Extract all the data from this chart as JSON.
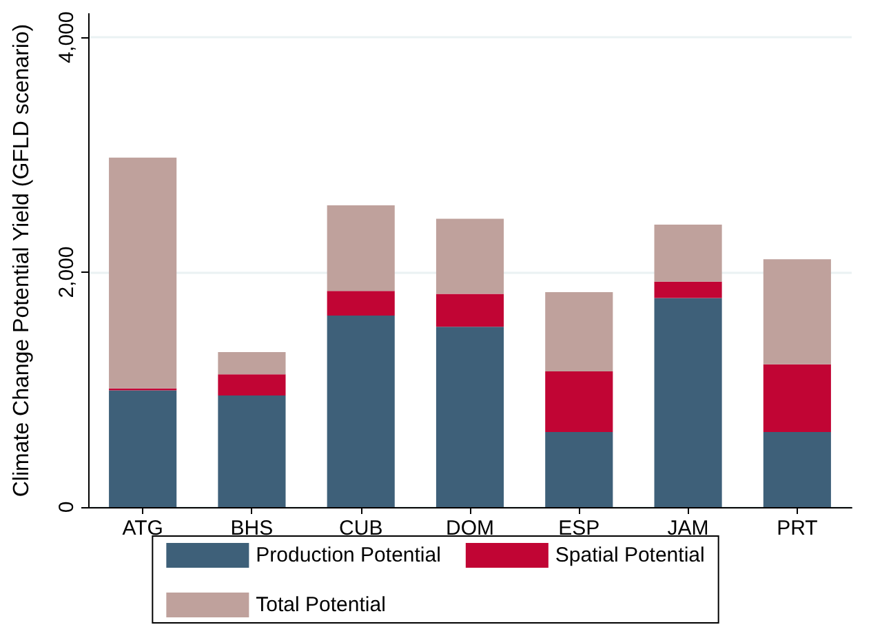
{
  "chart_data": {
    "type": "bar",
    "stacked": true,
    "ylabel": "Climate Change Potential Yield (GFLD scenario)",
    "categories": [
      "ATG",
      "BHS",
      "CUB",
      "DOM",
      "ESP",
      "JAM",
      "PRT"
    ],
    "series": [
      {
        "name": "Production Potential",
        "color": "#3e6079",
        "values": [
          995,
          950,
          1630,
          1535,
          640,
          1780,
          640
        ]
      },
      {
        "name": "Spatial Potential",
        "color": "#c10534",
        "values": [
          15,
          180,
          210,
          280,
          515,
          140,
          575
        ]
      },
      {
        "name": "Total Potential",
        "color": "#bfa19c",
        "values": [
          1965,
          190,
          730,
          640,
          675,
          485,
          895
        ]
      }
    ],
    "ylim": [
      0,
      4200
    ],
    "yticks": [
      {
        "value": 0,
        "label": "0"
      },
      {
        "value": 2000,
        "label": "2,000"
      },
      {
        "value": 4000,
        "label": "4,000"
      }
    ],
    "grid": "y",
    "legend": "bottom"
  }
}
